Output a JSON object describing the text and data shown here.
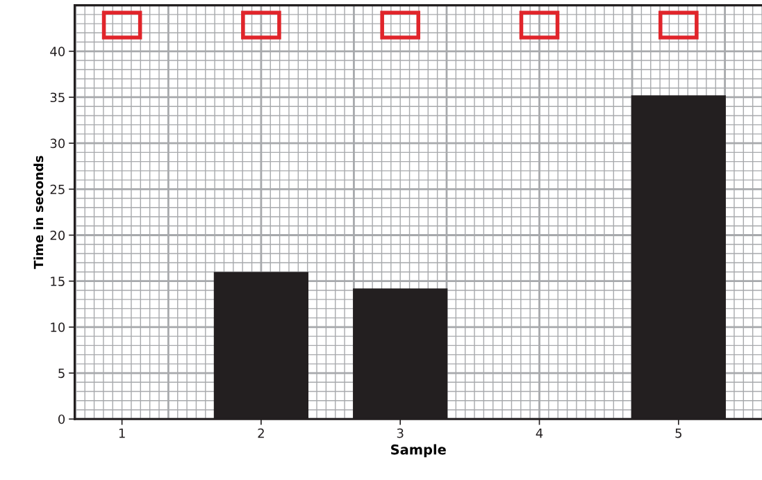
{
  "chart_data": {
    "type": "bar",
    "xlabel": "Sample",
    "ylabel": "Time in seconds",
    "categories": [
      "1",
      "2",
      "3",
      "4",
      "5"
    ],
    "values": [
      0,
      16,
      14.2,
      0,
      35.2
    ],
    "color": "#231f20",
    "ylim": [
      0,
      45
    ],
    "yticks": [
      0,
      5,
      10,
      15,
      20,
      25,
      30,
      35,
      40
    ],
    "grid": true
  }
}
